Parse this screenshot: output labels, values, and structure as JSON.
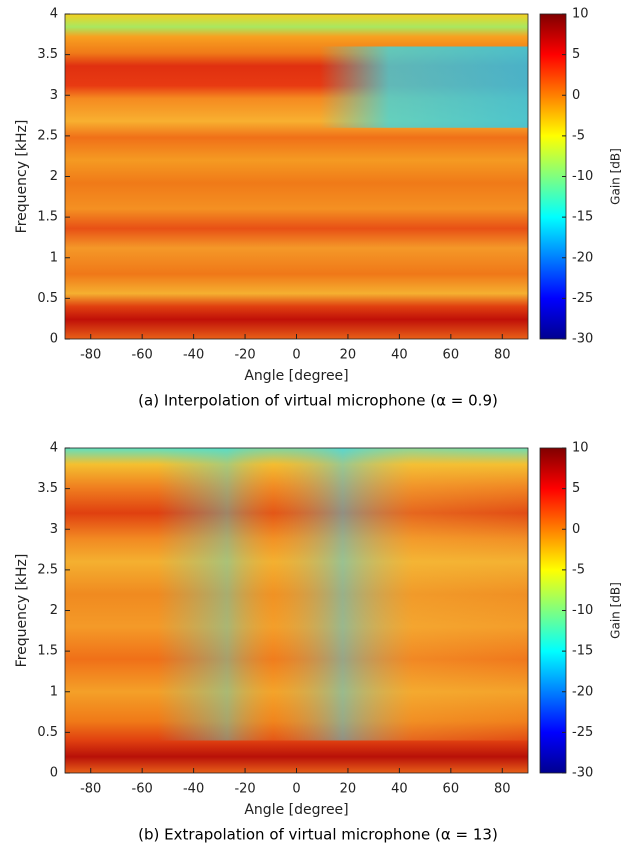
{
  "chart_data": [
    {
      "type": "heatmap",
      "colormap": "jet",
      "x_label": "Angle [degree]",
      "y_label": "Frequency [kHz]",
      "colorbar_label": "Gain [dB]",
      "xlim": [
        -90,
        90
      ],
      "xticks": [
        -80,
        -60,
        -40,
        -20,
        0,
        20,
        40,
        60,
        80
      ],
      "ylim": [
        0,
        4
      ],
      "yticks": [
        0,
        0.5,
        1,
        1.5,
        2,
        2.5,
        3,
        3.5,
        4
      ],
      "clim": [
        -30,
        10
      ],
      "cticks": [
        -30,
        -25,
        -20,
        -15,
        -10,
        -5,
        0,
        5,
        10
      ],
      "caption": "(a) Interpolation of virtual microphone (α = 0.9)"
    },
    {
      "type": "heatmap",
      "colormap": "jet",
      "x_label": "Angle [degree]",
      "y_label": "Frequency [kHz]",
      "colorbar_label": "Gain [dB]",
      "xlim": [
        -90,
        90
      ],
      "xticks": [
        -80,
        -60,
        -40,
        -20,
        0,
        20,
        40,
        60,
        80
      ],
      "ylim": [
        0,
        4
      ],
      "yticks": [
        0,
        0.5,
        1,
        1.5,
        2,
        2.5,
        3,
        3.5,
        4
      ],
      "clim": [
        -30,
        10
      ],
      "cticks": [
        -30,
        -25,
        -20,
        -15,
        -10,
        -5,
        0,
        5,
        10
      ],
      "caption": "(b) Extrapolation of virtual microphone (α = 13)"
    }
  ]
}
